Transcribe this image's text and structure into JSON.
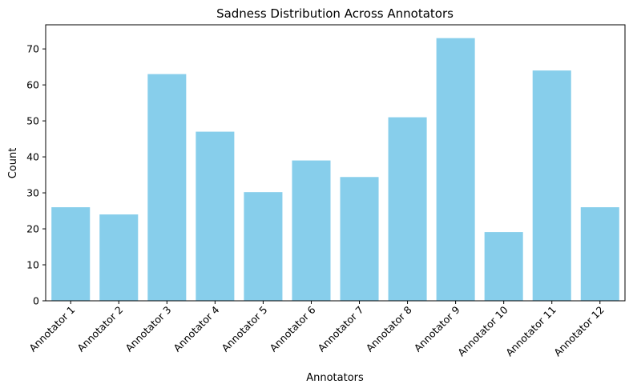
{
  "chart_data": {
    "type": "bar",
    "title": "Sadness Distribution Across Annotators",
    "xlabel": "Annotators",
    "ylabel": "Count",
    "categories": [
      "Annotator 1",
      "Annotator 2",
      "Annotator 3",
      "Annotator 4",
      "Annotator 5",
      "Annotator 6",
      "Annotator 7",
      "Annotator 8",
      "Annotator 9",
      "Annotator 10",
      "Annotator 11",
      "Annotator 12"
    ],
    "values": [
      26,
      24,
      63,
      47,
      30.2,
      39,
      34.4,
      51,
      73,
      19.1,
      64,
      26
    ],
    "ylim": [
      0,
      76.7
    ],
    "yticks": [
      0,
      10,
      20,
      30,
      40,
      50,
      60,
      70
    ],
    "bar_color": "#87ceeb",
    "grid": false,
    "legend": "none"
  }
}
